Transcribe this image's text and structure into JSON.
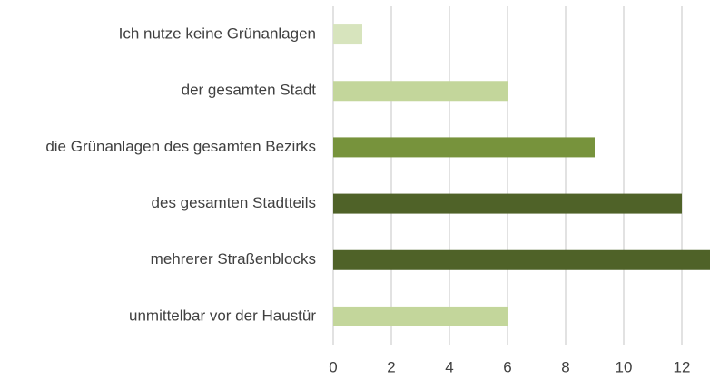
{
  "chart_data": {
    "type": "barh",
    "categories": [
      "Ich nutze keine Grünanlagen",
      "der gesamten Stadt",
      "die Grünanlagen des gesamten Bezirks",
      "des gesamten Stadtteils",
      "mehrerer Straßenblocks",
      "unmittelbar vor der Haustür"
    ],
    "values": [
      1,
      6,
      9,
      12,
      13,
      6
    ],
    "colors": [
      "#d7e4bd",
      "#c3d69b",
      "#77933c",
      "#4f6228",
      "#4f6228",
      "#c3d69b"
    ],
    "xlim": [
      0,
      12
    ],
    "xticks": [
      0,
      2,
      4,
      6,
      8,
      10,
      12
    ],
    "grid": true
  }
}
